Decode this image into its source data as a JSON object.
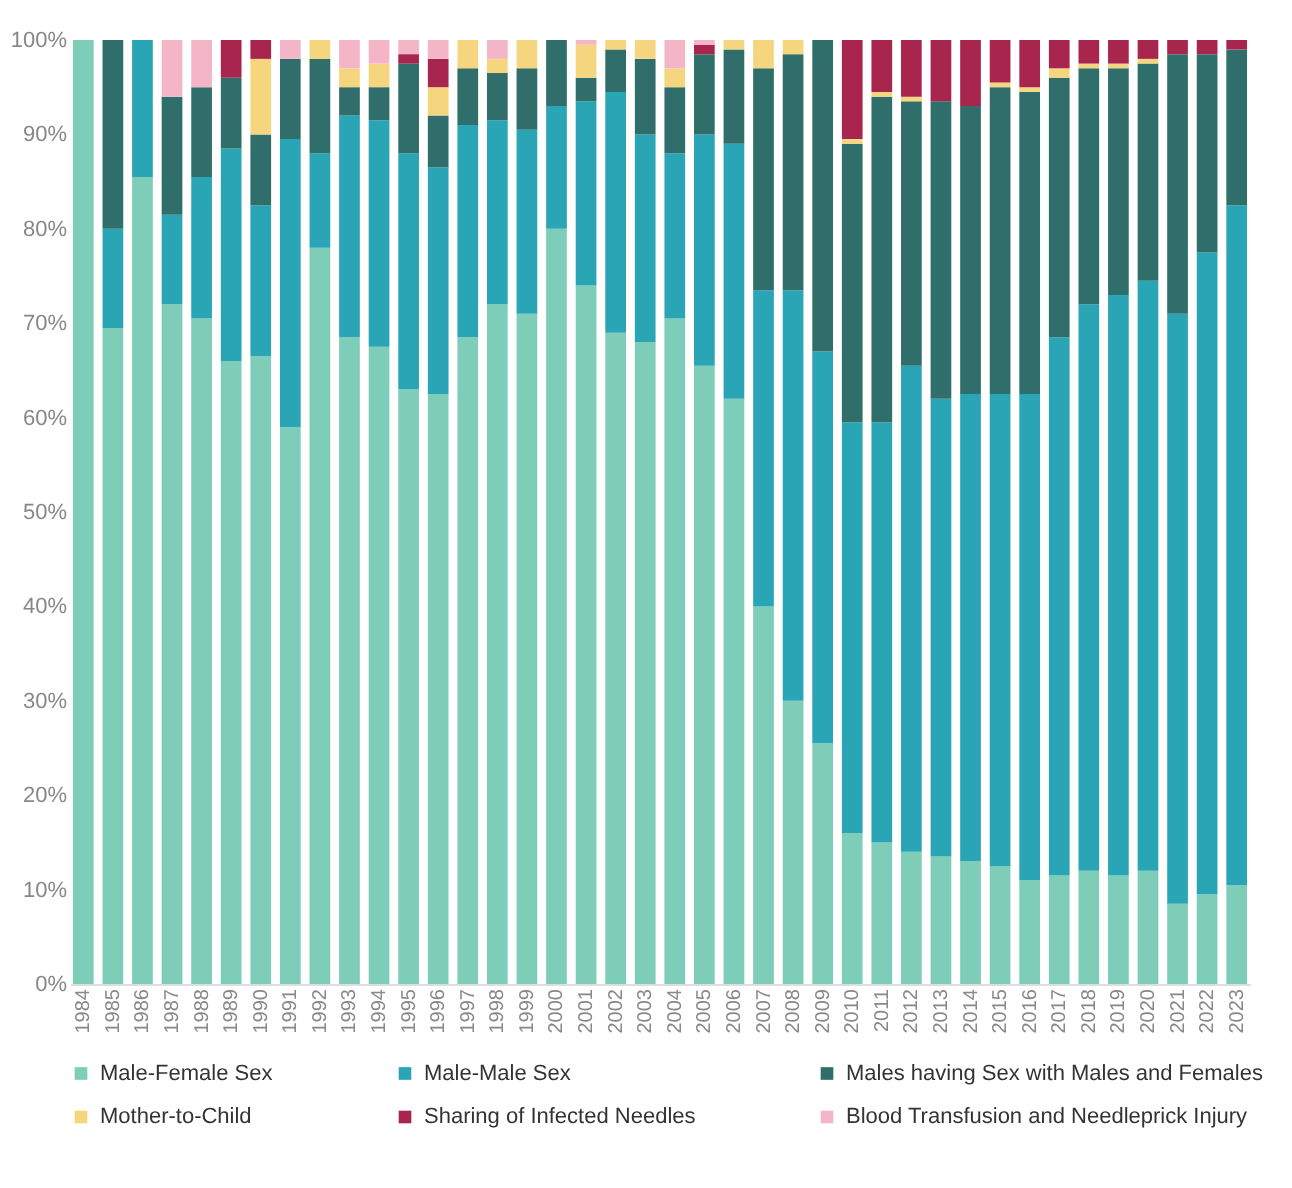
{
  "chart_data": {
    "type": "bar",
    "stacked": true,
    "legend": "bottom",
    "grid": false,
    "categories": [
      "1984",
      "1985",
      "1986",
      "1987",
      "1988",
      "1989",
      "1990",
      "1991",
      "1992",
      "1993",
      "1994",
      "1995",
      "1996",
      "1997",
      "1998",
      "1999",
      "2000",
      "2001",
      "2002",
      "2003",
      "2004",
      "2005",
      "2006",
      "2007",
      "2008",
      "2009",
      "2010",
      "2011",
      "2012",
      "2013",
      "2014",
      "2015",
      "2016",
      "2017",
      "2018",
      "2019",
      "2020",
      "2021",
      "2022",
      "2023"
    ],
    "ylim": [
      0,
      100
    ],
    "yticks": [
      {
        "value": 0,
        "label": "0%"
      },
      {
        "value": 10,
        "label": "10%"
      },
      {
        "value": 20,
        "label": "20%"
      },
      {
        "value": 30,
        "label": "30%"
      },
      {
        "value": 40,
        "label": "40%"
      },
      {
        "value": 50,
        "label": "50%"
      },
      {
        "value": 60,
        "label": "60%"
      },
      {
        "value": 70,
        "label": "70%"
      },
      {
        "value": 80,
        "label": "80%"
      },
      {
        "value": 90,
        "label": "90%"
      },
      {
        "value": 100,
        "label": "100%"
      }
    ],
    "series": [
      {
        "name": "Male-Female Sex",
        "color": "#7ecdb8",
        "values": [
          100,
          69.5,
          85.5,
          72,
          70.5,
          66,
          66.5,
          59,
          78,
          68.5,
          67.5,
          63,
          62.5,
          68.5,
          72,
          71,
          80,
          74,
          69,
          68,
          70.5,
          65.5,
          62,
          40,
          30,
          25.5,
          16,
          15,
          14,
          13.5,
          13,
          12.5,
          11,
          11.5,
          12,
          11.5,
          12,
          8.5,
          9.5,
          10.5
        ]
      },
      {
        "name": "Male-Male Sex",
        "color": "#2aa5b5",
        "values": [
          0,
          10.5,
          14.5,
          9.5,
          15,
          22.5,
          16,
          30.5,
          10,
          23.5,
          24,
          25,
          24,
          22.5,
          19.5,
          19.5,
          13,
          19.5,
          25.5,
          22,
          17.5,
          24.5,
          27,
          33.5,
          43.5,
          41.5,
          43.5,
          44.5,
          51.5,
          48.5,
          49.5,
          50,
          51.5,
          57,
          60,
          61.5,
          62.5,
          62.5,
          68,
          72
        ]
      },
      {
        "name": "Males having Sex with Males and Females",
        "color": "#2f6e6a",
        "values": [
          0,
          20,
          0,
          12.5,
          9.5,
          7.5,
          7.5,
          8.5,
          10,
          3,
          3.5,
          9.5,
          5.5,
          6,
          5,
          6.5,
          7,
          2.5,
          4.5,
          8,
          7,
          8.5,
          10,
          23.5,
          25,
          33,
          29.5,
          34.5,
          28,
          31.5,
          30.5,
          32.5,
          32,
          27.5,
          25,
          24,
          23,
          27.5,
          21,
          16.5
        ]
      },
      {
        "name": "Mother-to-Child",
        "color": "#f5d67f",
        "values": [
          0,
          0,
          0,
          0,
          0,
          0,
          8,
          0,
          2,
          2,
          2.5,
          0,
          3,
          3,
          1.5,
          3,
          0,
          3.5,
          1,
          2,
          2,
          0,
          1,
          3,
          1.5,
          0,
          0.5,
          0.5,
          0.5,
          0,
          0,
          0.5,
          0.5,
          1,
          0.5,
          0.5,
          0.5,
          0,
          0,
          0
        ]
      },
      {
        "name": "Sharing of Infected Needles",
        "color": "#a8264d",
        "values": [
          0,
          0,
          0,
          0,
          0,
          4,
          2,
          0,
          0,
          0,
          0,
          1,
          3,
          0,
          0,
          0,
          0,
          0,
          0,
          0,
          0,
          1,
          0,
          0,
          0,
          0,
          10.5,
          5.5,
          6,
          6.5,
          7,
          4.5,
          5,
          3,
          2.5,
          2.5,
          2,
          1.5,
          1.5,
          1
        ]
      },
      {
        "name": "Blood Transfusion and Needleprick Injury",
        "color": "#f4b6c6",
        "values": [
          0,
          0,
          0,
          6,
          5,
          0,
          0,
          2,
          0,
          3,
          2.5,
          1.5,
          2,
          0,
          2,
          0,
          0,
          0.5,
          0,
          0,
          3,
          0.5,
          0,
          0,
          0,
          0,
          0,
          0,
          0,
          0,
          0,
          0,
          0,
          0,
          0,
          0,
          0,
          0,
          0,
          0
        ]
      }
    ]
  }
}
